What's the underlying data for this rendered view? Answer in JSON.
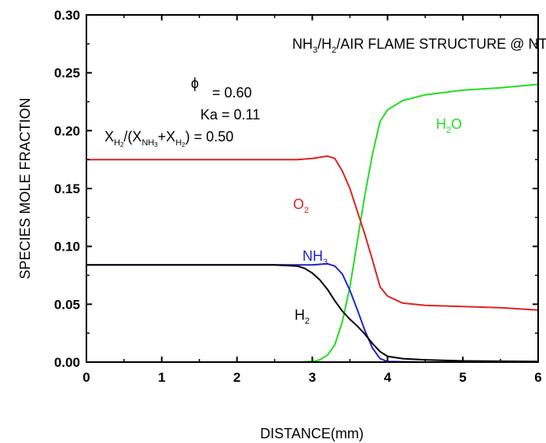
{
  "chart_data": {
    "type": "line",
    "xlabel": "DISTANCE(mm)",
    "ylabel": "SPECIES MOLE FRACTION",
    "xlim": [
      0,
      6
    ],
    "ylim": [
      0,
      0.3
    ],
    "xticks": [
      "0",
      "1",
      "2",
      "3",
      "4",
      "5",
      "6"
    ],
    "yticks": [
      "0.00",
      "0.05",
      "0.10",
      "0.15",
      "0.20",
      "0.25",
      "0.30"
    ],
    "xtick_values": [
      0,
      1,
      2,
      3,
      4,
      5,
      6
    ],
    "ytick_values": [
      0,
      0.05,
      0.1,
      0.15,
      0.2,
      0.25,
      0.3
    ],
    "grid": false,
    "annotations": {
      "title_main": "NH",
      "title_sub1": "3",
      "title_mid": "/H",
      "title_sub2": "2",
      "title_tail": "/AIR FLAME STRUCTURE @ NTP",
      "phi_symbol": "ϕ",
      "phi_value": "= 0.60",
      "ka": "Ka = 0.11",
      "x_prefix": "X",
      "x_sub_h2": "H",
      "x_sub_h2_num": "2",
      "x_open": "/(X",
      "x_sub_nh3": "NH",
      "x_sub_nh3_num": "3",
      "x_plus": "+X",
      "x_sub_h2b": "H",
      "x_sub_h2b_num": "2",
      "x_close": ") = 0.50"
    },
    "series": [
      {
        "name": "H2O",
        "label_main": "H",
        "label_sub": "2",
        "label_tail": "O",
        "color": "#22dd22",
        "x": [
          0,
          2.8,
          3.0,
          3.1,
          3.2,
          3.3,
          3.4,
          3.5,
          3.6,
          3.7,
          3.8,
          3.9,
          4.0,
          4.2,
          4.5,
          5.0,
          5.5,
          6.0
        ],
        "y": [
          0,
          0,
          0.0005,
          0.002,
          0.006,
          0.015,
          0.035,
          0.065,
          0.105,
          0.145,
          0.18,
          0.208,
          0.218,
          0.226,
          0.231,
          0.235,
          0.237,
          0.24
        ]
      },
      {
        "name": "O2",
        "label_main": "O",
        "label_sub": "2",
        "label_tail": "",
        "color": "#dd2222",
        "x": [
          0,
          2.5,
          2.8,
          3.0,
          3.1,
          3.2,
          3.3,
          3.4,
          3.5,
          3.6,
          3.7,
          3.8,
          3.9,
          4.0,
          4.2,
          4.5,
          5.0,
          5.5,
          6.0
        ],
        "y": [
          0.175,
          0.175,
          0.175,
          0.176,
          0.177,
          0.178,
          0.176,
          0.165,
          0.15,
          0.13,
          0.11,
          0.088,
          0.065,
          0.057,
          0.051,
          0.049,
          0.048,
          0.047,
          0.045
        ]
      },
      {
        "name": "NH3",
        "label_main": "NH",
        "label_sub": "3",
        "label_tail": "",
        "color": "#2222cc",
        "x": [
          0,
          2.5,
          3.0,
          3.2,
          3.3,
          3.4,
          3.5,
          3.6,
          3.7,
          3.8,
          3.9,
          4.0,
          4.5,
          6.0
        ],
        "y": [
          0.084,
          0.084,
          0.084,
          0.085,
          0.083,
          0.076,
          0.062,
          0.045,
          0.027,
          0.012,
          0.003,
          0.0005,
          0,
          0
        ]
      },
      {
        "name": "H2",
        "label_main": "H",
        "label_sub": "2",
        "label_tail": "",
        "color": "#000000",
        "x": [
          0,
          2.5,
          2.8,
          2.9,
          3.0,
          3.1,
          3.2,
          3.3,
          3.4,
          3.5,
          3.6,
          3.7,
          3.8,
          3.9,
          4.0,
          4.2,
          4.5,
          5.0,
          6.0
        ],
        "y": [
          0.084,
          0.084,
          0.083,
          0.081,
          0.077,
          0.071,
          0.063,
          0.053,
          0.044,
          0.037,
          0.031,
          0.024,
          0.016,
          0.009,
          0.005,
          0.003,
          0.002,
          0.001,
          0.0005
        ]
      }
    ]
  }
}
